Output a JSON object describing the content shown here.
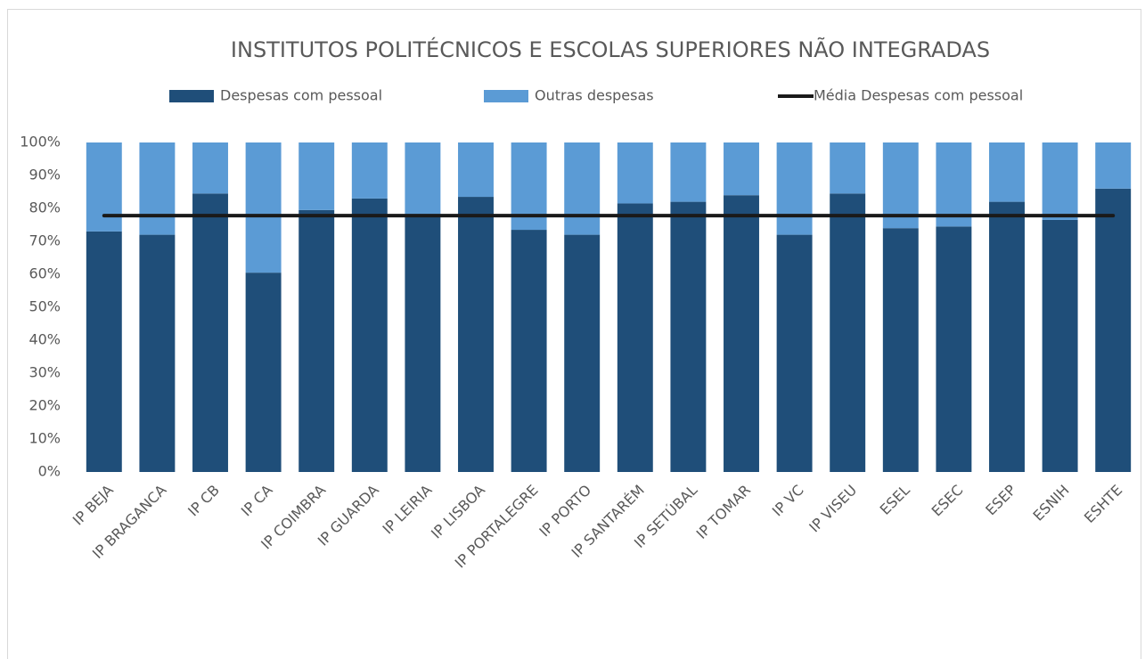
{
  "chart_data": {
    "type": "bar",
    "stacked": true,
    "title": "INSTITUTOS POLITÉCNICOS E ESCOLAS SUPERIORES NÃO INTEGRADAS",
    "categories": [
      "IP BEJA",
      "IP BRAGANCA",
      "IP CB",
      "IP CA",
      "IP COIMBRA",
      "IP GUARDA",
      "IP LEIRIA",
      "IP LISBOA",
      "IP PORTALEGRE",
      "IP PORTO",
      "IP SANTARÉM",
      "IP SETÚBAL",
      "IP TOMAR",
      "IP VC",
      "IP VISEU",
      "ESEL",
      "ESEC",
      "ESEP",
      "ESNIH",
      "ESHTE"
    ],
    "series": [
      {
        "name": "Despesas com pessoal",
        "color": "#1f4e79",
        "values": [
          73,
          72,
          84.5,
          60.5,
          79.5,
          83,
          78,
          83.5,
          73.5,
          72,
          81.5,
          82,
          84,
          72,
          84.5,
          74,
          74.5,
          82,
          76.5,
          86
        ]
      },
      {
        "name": "Outras despesas",
        "color": "#5b9bd5",
        "values": [
          27,
          28,
          15.5,
          39.5,
          20.5,
          17,
          22,
          16.5,
          26.5,
          28,
          18.5,
          18,
          16,
          28,
          15.5,
          26,
          25.5,
          18,
          23.5,
          14
        ]
      },
      {
        "name": "Média Despesas com pessoal",
        "color": "#1a1a1a",
        "type": "line",
        "values": [
          77.8,
          77.8,
          77.8,
          77.8,
          77.8,
          77.8,
          77.8,
          77.8,
          77.8,
          77.8,
          77.8,
          77.8,
          77.8,
          77.8,
          77.8,
          77.8,
          77.8,
          77.8,
          77.8,
          77.8
        ]
      }
    ],
    "ylim": [
      0,
      100
    ],
    "yticks": [
      {
        "value": 0,
        "label": "0%"
      },
      {
        "value": 10,
        "label": "10%"
      },
      {
        "value": 20,
        "label": "20%"
      },
      {
        "value": 30,
        "label": "30%"
      },
      {
        "value": 40,
        "label": "40%"
      },
      {
        "value": 50,
        "label": "50%"
      },
      {
        "value": 60,
        "label": "60%"
      },
      {
        "value": 70,
        "label": "70%"
      },
      {
        "value": 80,
        "label": "80%"
      },
      {
        "value": 90,
        "label": "90%"
      },
      {
        "value": 100,
        "label": "100%"
      }
    ],
    "grid": false,
    "legend": "top"
  }
}
